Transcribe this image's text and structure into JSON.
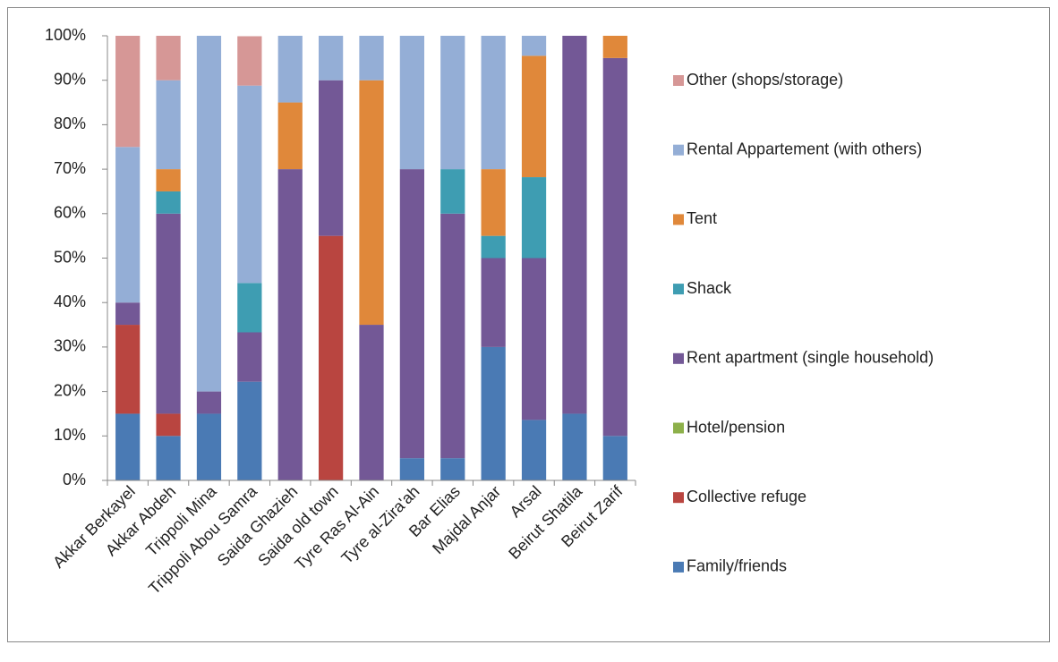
{
  "chart_data": {
    "type": "stacked_bar",
    "categories": [
      "Akkar Berkayel",
      "Akkar Abdeh",
      "Trippoli Mina",
      "Trippoli Abou Samra",
      "Saida Ghazieh",
      "Saida old town",
      "Tyre Ras Al-Ain",
      "Tyre al-Zira'ah",
      "Bar Elias",
      "Majdal Anjar",
      "Arsal",
      "Beirut Shatila",
      "Beirut Zarif"
    ],
    "series": [
      {
        "name": "Family/friends",
        "color": "#4a7ab4",
        "values": [
          15,
          10,
          15,
          22.2,
          0,
          0,
          0,
          5,
          5,
          30,
          13.6,
          15,
          10
        ]
      },
      {
        "name": "Collective refuge",
        "color": "#b94540",
        "values": [
          20,
          5,
          0,
          0,
          0,
          55,
          0,
          0,
          0,
          0,
          0,
          0,
          0
        ]
      },
      {
        "name": "Hotel/pension",
        "color": "#8db04a",
        "values": [
          0,
          0,
          0,
          0,
          0,
          0,
          0,
          0,
          0,
          0,
          0,
          0,
          0
        ]
      },
      {
        "name": "Rent apartment (single household)",
        "color": "#735896",
        "values": [
          5,
          45,
          5,
          11.1,
          70,
          35,
          35,
          65,
          55,
          20,
          36.4,
          85,
          85
        ]
      },
      {
        "name": "Shack",
        "color": "#3e9db2",
        "values": [
          0,
          5,
          0,
          11.1,
          0,
          0,
          0,
          0,
          10,
          5,
          18.2,
          0,
          0
        ]
      },
      {
        "name": "Tent",
        "color": "#e0883a",
        "values": [
          0,
          5,
          0,
          0,
          15,
          0,
          55,
          0,
          0,
          15,
          27.3,
          0,
          5
        ]
      },
      {
        "name": "Rental Appartement (with others)",
        "color": "#94aed6",
        "values": [
          35,
          20,
          80,
          44.4,
          15,
          10,
          10,
          30,
          30,
          30,
          4.5,
          0,
          0
        ]
      },
      {
        "name": "Other (shops/storage)",
        "color": "#d69796",
        "values": [
          25,
          10,
          0,
          11.1,
          0,
          0,
          0,
          0,
          0,
          0,
          0,
          0,
          0
        ]
      }
    ],
    "ylim": [
      0,
      100
    ],
    "yticks": [
      {
        "value": 0,
        "label": "0%"
      },
      {
        "value": 10,
        "label": "10%"
      },
      {
        "value": 20,
        "label": "20%"
      },
      {
        "value": 30,
        "label": "30%"
      },
      {
        "value": 40,
        "label": "40%"
      },
      {
        "value": 50,
        "label": "50%"
      },
      {
        "value": 60,
        "label": "60%"
      },
      {
        "value": 70,
        "label": "70%"
      },
      {
        "value": 80,
        "label": "80%"
      },
      {
        "value": 90,
        "label": "90%"
      },
      {
        "value": 100,
        "label": "100%"
      }
    ],
    "grid": false,
    "legend": "right"
  }
}
